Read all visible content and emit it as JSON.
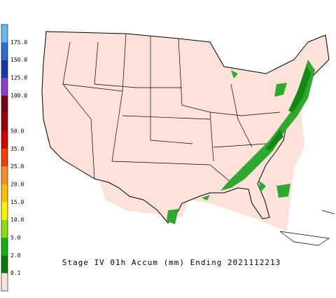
{
  "title": "Stage IV 01h Accum (mm) Ending 2021112213",
  "legend": {
    "entries": [
      {
        "label": null,
        "color": "#66b8f0"
      },
      {
        "label": "175.0",
        "color": "#2a6cd8"
      },
      {
        "label": "150.0",
        "color": "#1838a8"
      },
      {
        "label": "125.0",
        "color": "#8c3cd0"
      },
      {
        "label": "100.0",
        "color": "#7a0010"
      },
      {
        "label": null,
        "color": "#9a0010"
      },
      {
        "label": "50.0",
        "color": "#d40000"
      },
      {
        "label": "35.0",
        "color": "#f04000"
      },
      {
        "label": "25.0",
        "color": "#ff8c28"
      },
      {
        "label": "20.0",
        "color": "#ffc000"
      },
      {
        "label": "15.0",
        "color": "#ffee00"
      },
      {
        "label": "10.0",
        "color": "#88e010"
      },
      {
        "label": "5.0",
        "color": "#10b010"
      },
      {
        "label": "2.0",
        "color": "#087808"
      },
      {
        "label": "0.1",
        "color": "#fbe4dc"
      }
    ]
  }
}
